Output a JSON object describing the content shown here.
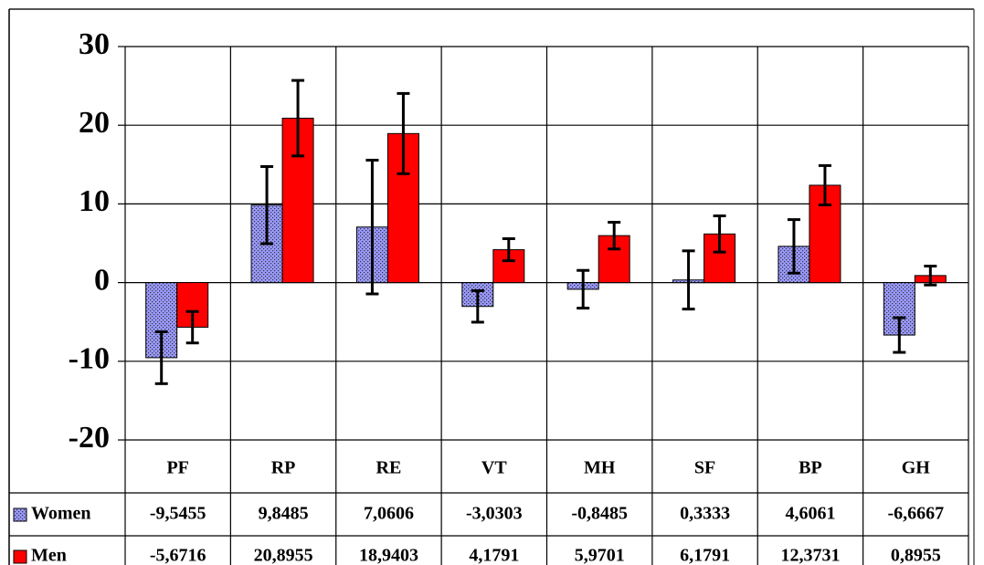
{
  "chart_data": {
    "type": "bar",
    "categories": [
      "PF",
      "RP",
      "RE",
      "VT",
      "MH",
      "SF",
      "BP",
      "GH"
    ],
    "series": [
      {
        "name": "Women",
        "color": "#9999ff",
        "values": [
          -9.5455,
          9.8485,
          7.0606,
          -3.0303,
          -0.8485,
          0.3333,
          4.6061,
          -6.6667
        ],
        "value_labels": [
          "-9,5455",
          "9,8485",
          "7,0606",
          "-3,0303",
          "-0,8485",
          "0,3333",
          "4,6061",
          "-6,6667"
        ],
        "errors": [
          3.3,
          4.9,
          8.5,
          2.0,
          2.4,
          3.7,
          3.4,
          2.2
        ]
      },
      {
        "name": "Men",
        "color": "#ff0000",
        "values": [
          -5.6716,
          20.8955,
          18.9403,
          4.1791,
          5.9701,
          6.1791,
          12.3731,
          0.8955
        ],
        "value_labels": [
          "-5,6716",
          "20,8955",
          "18,9403",
          "4,1791",
          "5,9701",
          "6,1791",
          "12,3731",
          "0,8955"
        ],
        "errors": [
          2.0,
          4.8,
          5.1,
          1.4,
          1.7,
          2.3,
          2.5,
          1.2
        ]
      }
    ],
    "ylim": [
      -20,
      30
    ],
    "yticks": [
      -20,
      -10,
      0,
      10,
      20,
      30
    ],
    "grid": true
  }
}
